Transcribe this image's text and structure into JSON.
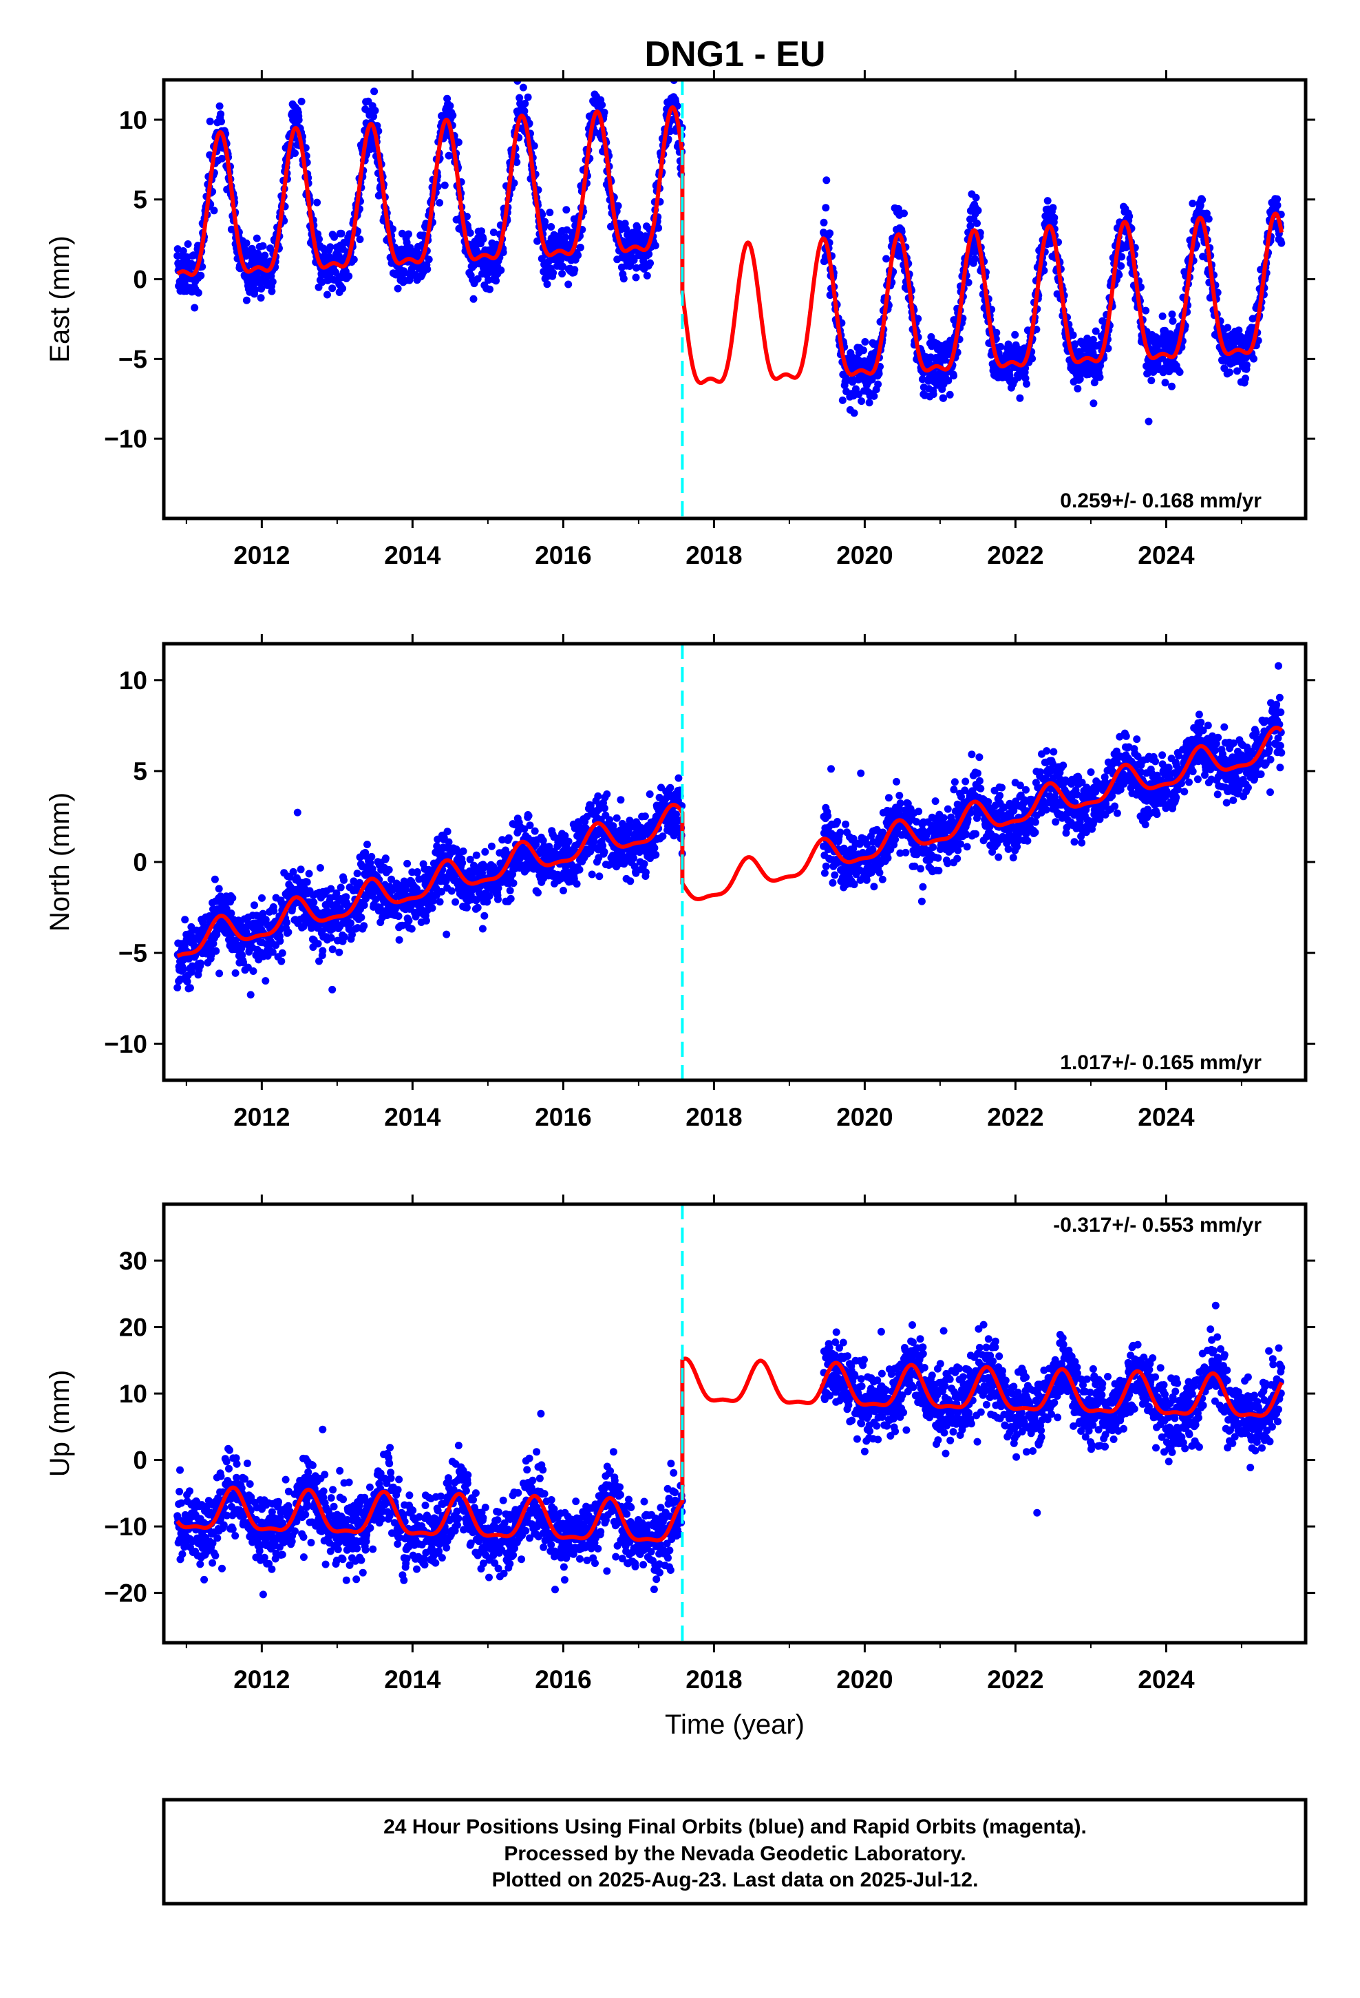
{
  "title": "DNG1 - EU",
  "colors": {
    "data_points": "#0000ff",
    "model_fit": "#ff0000",
    "offset_line": "#00ffff",
    "frame": "#000000",
    "background": "#ffffff"
  },
  "chart_data": [
    {
      "type": "scatter",
      "panel": "east",
      "ylabel": "East (mm)",
      "xlabel": "",
      "annotation": "0.259+/- 0.168 mm/yr",
      "annotation_placement": "bottom-right",
      "xlim": [
        2010.7,
        2025.85
      ],
      "ylim": [
        -15,
        12.5
      ],
      "yticks": [
        10,
        5,
        0,
        -5,
        -10
      ],
      "xticks": [
        2012,
        2014,
        2016,
        2018,
        2020,
        2022,
        2024
      ],
      "offset_epoch": 2017.58,
      "data_gap": [
        2017.58,
        2019.45
      ],
      "model": {
        "pre": {
          "intercept": 3.3,
          "amplitude": 4.3
        },
        "post": {
          "intercept": -5.3,
          "amplitude": 4.2
        },
        "trend_mm_per_yr": 0.259,
        "annual_peak_phase": 0.45,
        "scatter_sigma": 1.2
      },
      "series": [
        {
          "name": "",
          "style": "points",
          "color": "#0000ff"
        },
        {
          "name": "",
          "style": "line",
          "color": "#ff0000"
        }
      ]
    },
    {
      "type": "scatter",
      "panel": "north",
      "ylabel": "North (mm)",
      "xlabel": "",
      "annotation": "1.017+/- 0.165 mm/yr",
      "annotation_placement": "bottom-right",
      "xlim": [
        2010.7,
        2025.85
      ],
      "ylim": [
        -12,
        12
      ],
      "yticks": [
        10,
        5,
        0,
        -5,
        -10
      ],
      "xticks": [
        2012,
        2014,
        2016,
        2018,
        2020,
        2022,
        2024
      ],
      "offset_epoch": 2017.58,
      "data_gap": [
        2017.58,
        2019.45
      ],
      "model": {
        "pre": {
          "intercept": -4.5,
          "amplitude": 0.8
        },
        "post": {
          "intercept": -8.4,
          "amplitude": 0.8
        },
        "trend_mm_per_yr": 1.017,
        "annual_peak_phase": 0.45,
        "scatter_sigma": 1.2
      },
      "series": [
        {
          "name": "",
          "style": "points",
          "color": "#0000ff"
        },
        {
          "name": "",
          "style": "line",
          "color": "#ff0000"
        }
      ]
    },
    {
      "type": "scatter",
      "panel": "up",
      "ylabel": "Up (mm)",
      "xlabel": "Time (year)",
      "annotation": "-0.317+/- 0.553 mm/yr",
      "annotation_placement": "top-right",
      "xlim": [
        2010.7,
        2025.85
      ],
      "ylim": [
        -27.5,
        38.5
      ],
      "yticks": [
        30,
        20,
        10,
        0,
        -10,
        -20
      ],
      "xticks": [
        2012,
        2014,
        2016,
        2018,
        2020,
        2022,
        2024
      ],
      "offset_epoch": 2017.58,
      "data_gap": [
        2017.58,
        2019.45
      ],
      "model": {
        "pre": {
          "intercept": -8.0,
          "amplitude": 3.0
        },
        "post": {
          "intercept": 13.3,
          "amplitude": 3.0
        },
        "trend_mm_per_yr": -0.317,
        "annual_peak_phase": 0.62,
        "scatter_sigma": 3.8
      },
      "series": [
        {
          "name": "",
          "style": "points",
          "color": "#0000ff"
        },
        {
          "name": "",
          "style": "line",
          "color": "#ff0000"
        }
      ]
    }
  ],
  "footer": {
    "line1": "24 Hour Positions Using Final Orbits (blue) and Rapid Orbits (magenta).",
    "line2": "Processed by the Nevada Geodetic Laboratory.",
    "line3": "Plotted on 2025-Aug-23. Last data on 2025-Jul-12."
  }
}
